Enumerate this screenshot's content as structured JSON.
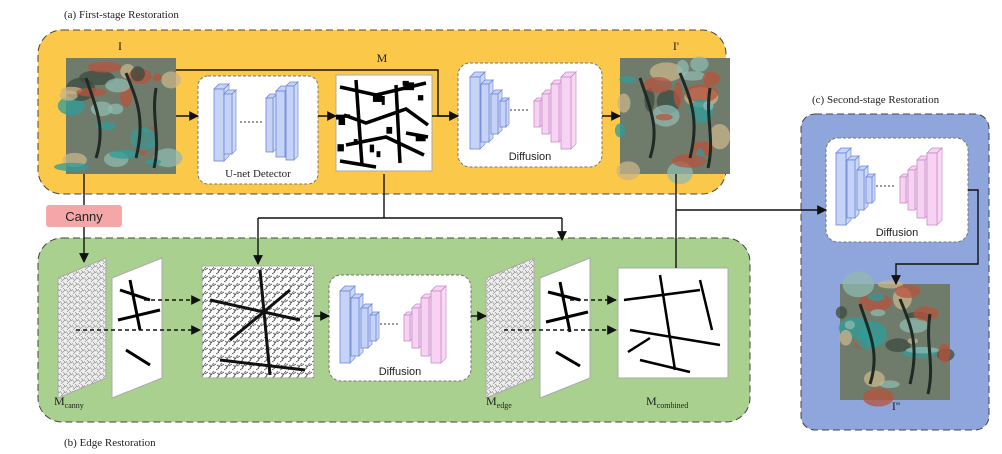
{
  "stage_a": {
    "caption": "(a) First-stage Restoration",
    "color": "#fcc84a"
  },
  "stage_b": {
    "caption": "(b) Edge Restoration",
    "color": "#a9d08e"
  },
  "stage_c": {
    "caption": "(c) Second-stage Restoration",
    "color": "#8fa6dc"
  },
  "labels": {
    "input": "I",
    "mask": "M",
    "output_first": "I'",
    "output_final": "I''",
    "detector": "U-net Detector",
    "diffusion": "Diffusion",
    "canny": "Canny",
    "m_canny_main": "M",
    "m_canny_sub": "canny",
    "m_edge_main": "M",
    "m_edge_sub": "edge",
    "m_comb_main": "M",
    "m_comb_sub": "combined"
  },
  "colors": {
    "encoder_blue": "#c5d3f7",
    "encoder_stroke": "#6f87d6",
    "decoder_pink": "#f6d3f3",
    "decoder_stroke": "#c98cc6",
    "canny_box": "#f4a6a8",
    "mural_base": "#6f7c6c",
    "mural_teal": "#2f9c9a",
    "mural_red": "#b8533c"
  }
}
